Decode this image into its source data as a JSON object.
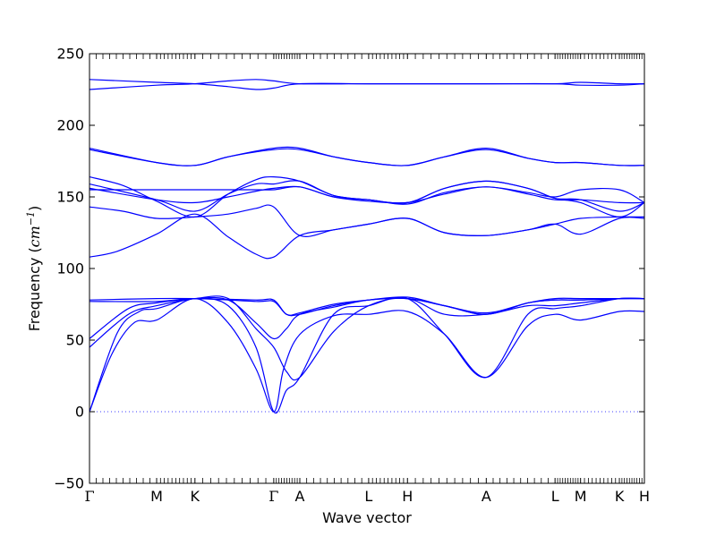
{
  "chart_data": {
    "type": "line",
    "title": "",
    "xlabel": "Wave vector",
    "ylabel": {
      "prefix": "Frequency (",
      "unit": "cm",
      "exponent": "−1",
      "suffix": ")"
    },
    "ylim": [
      -50,
      250
    ],
    "yticks": [
      "−50",
      "0",
      "50",
      "100",
      "150",
      "200",
      "250"
    ],
    "ytick_values": [
      -50,
      0,
      50,
      100,
      150,
      200,
      250
    ],
    "xlim": [
      0,
      1
    ],
    "high_symmetry_points": [
      {
        "label": "Γ",
        "x": 0.0
      },
      {
        "label": "M",
        "x": 0.121
      },
      {
        "label": "K",
        "x": 0.19
      },
      {
        "label": "Γ",
        "x": 0.332
      },
      {
        "label": "A",
        "x": 0.379
      },
      {
        "label": "L",
        "x": 0.503
      },
      {
        "label": "H",
        "x": 0.573
      },
      {
        "label": "A",
        "x": 0.715
      },
      {
        "label": "L",
        "x": 0.839
      },
      {
        "label": "M",
        "x": 0.885
      },
      {
        "label": "K",
        "x": 0.955
      },
      {
        "label": "H",
        "x": 1.0
      }
    ],
    "zero_line": {
      "y": 0,
      "style": "dotted"
    },
    "line_color": "#0000ff",
    "grid": false,
    "series": [
      {
        "values": [
          [
            0,
            0
          ],
          [
            0.04,
            40
          ],
          [
            0.08,
            62
          ],
          [
            0.121,
            64
          ],
          [
            0.19,
            79
          ],
          [
            0.25,
            62
          ],
          [
            0.3,
            30
          ],
          [
            0.332,
            0
          ],
          [
            0.35,
            30
          ],
          [
            0.379,
            54
          ],
          [
            0.44,
            67
          ],
          [
            0.503,
            68
          ],
          [
            0.573,
            70
          ],
          [
            0.64,
            54
          ],
          [
            0.715,
            24
          ],
          [
            0.79,
            60
          ],
          [
            0.839,
            68
          ],
          [
            0.885,
            64
          ],
          [
            0.955,
            70
          ],
          [
            1.0,
            70
          ]
        ]
      },
      {
        "values": [
          [
            0,
            0
          ],
          [
            0.05,
            55
          ],
          [
            0.09,
            70
          ],
          [
            0.121,
            72
          ],
          [
            0.19,
            79
          ],
          [
            0.25,
            74
          ],
          [
            0.3,
            45
          ],
          [
            0.332,
            0
          ],
          [
            0.355,
            15
          ],
          [
            0.379,
            24
          ],
          [
            0.44,
            68
          ],
          [
            0.503,
            74
          ],
          [
            0.573,
            79
          ],
          [
            0.64,
            54
          ],
          [
            0.715,
            24
          ],
          [
            0.79,
            68
          ],
          [
            0.839,
            72
          ],
          [
            0.885,
            74
          ],
          [
            0.955,
            79
          ],
          [
            1.0,
            79
          ]
        ]
      },
      {
        "values": [
          [
            0,
            45
          ],
          [
            0.07,
            68
          ],
          [
            0.121,
            74
          ],
          [
            0.19,
            79
          ],
          [
            0.25,
            79
          ],
          [
            0.3,
            58
          ],
          [
            0.332,
            45
          ],
          [
            0.355,
            28
          ],
          [
            0.379,
            24
          ],
          [
            0.44,
            56
          ],
          [
            0.503,
            74
          ],
          [
            0.573,
            79
          ],
          [
            0.64,
            68
          ],
          [
            0.715,
            68
          ],
          [
            0.79,
            74
          ],
          [
            0.839,
            74
          ],
          [
            0.885,
            76
          ],
          [
            0.955,
            79
          ],
          [
            1.0,
            79
          ]
        ]
      },
      {
        "values": [
          [
            0,
            51
          ],
          [
            0.07,
            72
          ],
          [
            0.121,
            76
          ],
          [
            0.19,
            79
          ],
          [
            0.25,
            78
          ],
          [
            0.3,
            62
          ],
          [
            0.332,
            51
          ],
          [
            0.355,
            58
          ],
          [
            0.379,
            68
          ],
          [
            0.44,
            73
          ],
          [
            0.503,
            78
          ],
          [
            0.573,
            79
          ],
          [
            0.64,
            74
          ],
          [
            0.715,
            68
          ],
          [
            0.79,
            76
          ],
          [
            0.839,
            78
          ],
          [
            0.885,
            78
          ],
          [
            0.955,
            79
          ],
          [
            1.0,
            79
          ]
        ]
      },
      {
        "values": [
          [
            0,
            77
          ],
          [
            0.121,
            77
          ],
          [
            0.19,
            79
          ],
          [
            0.3,
            77
          ],
          [
            0.332,
            77
          ],
          [
            0.355,
            68
          ],
          [
            0.379,
            68
          ],
          [
            0.44,
            74
          ],
          [
            0.503,
            78
          ],
          [
            0.573,
            79
          ],
          [
            0.64,
            74
          ],
          [
            0.715,
            68
          ],
          [
            0.79,
            76
          ],
          [
            0.839,
            78
          ],
          [
            0.885,
            78
          ],
          [
            0.955,
            79
          ],
          [
            1.0,
            79
          ]
        ]
      },
      {
        "values": [
          [
            0,
            78
          ],
          [
            0.121,
            79
          ],
          [
            0.19,
            79
          ],
          [
            0.3,
            78
          ],
          [
            0.332,
            78
          ],
          [
            0.355,
            68
          ],
          [
            0.379,
            69
          ],
          [
            0.44,
            75
          ],
          [
            0.503,
            78
          ],
          [
            0.573,
            80
          ],
          [
            0.64,
            74
          ],
          [
            0.715,
            69
          ],
          [
            0.79,
            76
          ],
          [
            0.839,
            79
          ],
          [
            0.885,
            79
          ],
          [
            0.955,
            79
          ],
          [
            1.0,
            79
          ]
        ]
      },
      {
        "values": [
          [
            0,
            108
          ],
          [
            0.05,
            112
          ],
          [
            0.121,
            124
          ],
          [
            0.19,
            138
          ],
          [
            0.25,
            122
          ],
          [
            0.3,
            110
          ],
          [
            0.332,
            108
          ],
          [
            0.379,
            123
          ],
          [
            0.44,
            127
          ],
          [
            0.503,
            131
          ],
          [
            0.573,
            135
          ],
          [
            0.64,
            125
          ],
          [
            0.715,
            123
          ],
          [
            0.79,
            127
          ],
          [
            0.839,
            131
          ],
          [
            0.885,
            124
          ],
          [
            0.955,
            135
          ],
          [
            1.0,
            135
          ]
        ]
      },
      {
        "values": [
          [
            0,
            143
          ],
          [
            0.06,
            140
          ],
          [
            0.121,
            135
          ],
          [
            0.19,
            136
          ],
          [
            0.25,
            138
          ],
          [
            0.3,
            142
          ],
          [
            0.332,
            143
          ],
          [
            0.379,
            123
          ],
          [
            0.44,
            127
          ],
          [
            0.503,
            131
          ],
          [
            0.573,
            135
          ],
          [
            0.64,
            125
          ],
          [
            0.715,
            123
          ],
          [
            0.79,
            127
          ],
          [
            0.839,
            131
          ],
          [
            0.885,
            135
          ],
          [
            0.955,
            136
          ],
          [
            1.0,
            136
          ]
        ]
      },
      {
        "values": [
          [
            0,
            155
          ],
          [
            0.121,
            155
          ],
          [
            0.19,
            155
          ],
          [
            0.25,
            155
          ],
          [
            0.3,
            155
          ],
          [
            0.332,
            155
          ],
          [
            0.379,
            157
          ],
          [
            0.44,
            150
          ],
          [
            0.503,
            148
          ],
          [
            0.573,
            145
          ],
          [
            0.64,
            153
          ],
          [
            0.715,
            157
          ],
          [
            0.79,
            153
          ],
          [
            0.839,
            150
          ],
          [
            0.885,
            155
          ],
          [
            0.955,
            155
          ],
          [
            1.0,
            146
          ]
        ]
      },
      {
        "values": [
          [
            0,
            156
          ],
          [
            0.121,
            148
          ],
          [
            0.19,
            146
          ],
          [
            0.25,
            150
          ],
          [
            0.3,
            154
          ],
          [
            0.332,
            156
          ],
          [
            0.379,
            157
          ],
          [
            0.44,
            150
          ],
          [
            0.503,
            147
          ],
          [
            0.573,
            146
          ],
          [
            0.64,
            152
          ],
          [
            0.715,
            157
          ],
          [
            0.79,
            152
          ],
          [
            0.839,
            148
          ],
          [
            0.885,
            148
          ],
          [
            0.955,
            146
          ],
          [
            1.0,
            146
          ]
        ]
      },
      {
        "values": [
          [
            0,
            159
          ],
          [
            0.121,
            148
          ],
          [
            0.19,
            140
          ],
          [
            0.25,
            152
          ],
          [
            0.3,
            159
          ],
          [
            0.332,
            159
          ],
          [
            0.379,
            161
          ],
          [
            0.44,
            151
          ],
          [
            0.503,
            148
          ],
          [
            0.573,
            146
          ],
          [
            0.64,
            156
          ],
          [
            0.715,
            161
          ],
          [
            0.79,
            156
          ],
          [
            0.839,
            149
          ],
          [
            0.885,
            148
          ],
          [
            0.955,
            140
          ],
          [
            1.0,
            146
          ]
        ]
      },
      {
        "values": [
          [
            0,
            164
          ],
          [
            0.06,
            158
          ],
          [
            0.121,
            147
          ],
          [
            0.19,
            136
          ],
          [
            0.25,
            152
          ],
          [
            0.3,
            162
          ],
          [
            0.332,
            164
          ],
          [
            0.379,
            161
          ],
          [
            0.44,
            151
          ],
          [
            0.503,
            148
          ],
          [
            0.573,
            146
          ],
          [
            0.64,
            156
          ],
          [
            0.715,
            161
          ],
          [
            0.79,
            156
          ],
          [
            0.839,
            149
          ],
          [
            0.885,
            146
          ],
          [
            0.955,
            136
          ],
          [
            1.0,
            146
          ]
        ]
      },
      {
        "values": [
          [
            0,
            183
          ],
          [
            0.121,
            174
          ],
          [
            0.19,
            172
          ],
          [
            0.25,
            178
          ],
          [
            0.332,
            183
          ],
          [
            0.379,
            183
          ],
          [
            0.44,
            178
          ],
          [
            0.503,
            174
          ],
          [
            0.573,
            172
          ],
          [
            0.64,
            178
          ],
          [
            0.715,
            183
          ],
          [
            0.79,
            177
          ],
          [
            0.839,
            174
          ],
          [
            0.885,
            174
          ],
          [
            0.955,
            172
          ],
          [
            1.0,
            172
          ]
        ]
      },
      {
        "values": [
          [
            0,
            184
          ],
          [
            0.121,
            174
          ],
          [
            0.19,
            172
          ],
          [
            0.25,
            178
          ],
          [
            0.332,
            184
          ],
          [
            0.379,
            184
          ],
          [
            0.44,
            178
          ],
          [
            0.503,
            174
          ],
          [
            0.573,
            172
          ],
          [
            0.64,
            178
          ],
          [
            0.715,
            184
          ],
          [
            0.79,
            177
          ],
          [
            0.839,
            174
          ],
          [
            0.885,
            174
          ],
          [
            0.955,
            172
          ],
          [
            1.0,
            172
          ]
        ]
      },
      {
        "values": [
          [
            0,
            225
          ],
          [
            0.121,
            228
          ],
          [
            0.19,
            229
          ],
          [
            0.25,
            231
          ],
          [
            0.3,
            232
          ],
          [
            0.332,
            231
          ],
          [
            0.379,
            229
          ],
          [
            0.503,
            229
          ],
          [
            0.573,
            229
          ],
          [
            0.715,
            229
          ],
          [
            0.839,
            229
          ],
          [
            0.885,
            230
          ],
          [
            0.955,
            229
          ],
          [
            1.0,
            229
          ]
        ]
      },
      {
        "values": [
          [
            0,
            232
          ],
          [
            0.121,
            230
          ],
          [
            0.19,
            229
          ],
          [
            0.25,
            227
          ],
          [
            0.3,
            225
          ],
          [
            0.332,
            226
          ],
          [
            0.379,
            229
          ],
          [
            0.503,
            229
          ],
          [
            0.573,
            229
          ],
          [
            0.715,
            229
          ],
          [
            0.839,
            229
          ],
          [
            0.885,
            228
          ],
          [
            0.955,
            228
          ],
          [
            1.0,
            229
          ]
        ]
      }
    ]
  }
}
